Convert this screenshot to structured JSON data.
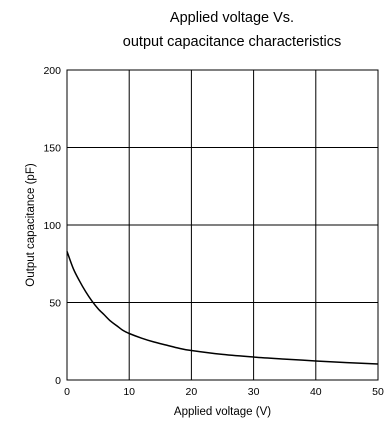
{
  "chart_data": {
    "type": "line",
    "title_lines": [
      "Applied voltage Vs.",
      "output capacitance characteristics"
    ],
    "xlabel": "Applied voltage (V)",
    "ylabel": "Output capacitance (pF)",
    "xlim": [
      0,
      50
    ],
    "ylim": [
      0,
      200
    ],
    "x_ticks": [
      0,
      10,
      20,
      30,
      40,
      50
    ],
    "y_ticks": [
      0,
      50,
      100,
      150,
      200
    ],
    "x_tick_labels": [
      "0",
      "10",
      "20",
      "30",
      "40",
      "50"
    ],
    "y_tick_labels": [
      "0",
      "50",
      "100",
      "150",
      "200"
    ],
    "grid": true,
    "legend": "none",
    "line_color": "#000000",
    "grid_color": "#000000",
    "series": [
      {
        "x": [
          0,
          1,
          2,
          3,
          4,
          5,
          6,
          7,
          8,
          9,
          10,
          12,
          14,
          16,
          18,
          20,
          25,
          30,
          35,
          40,
          45,
          50
        ],
        "y": [
          83,
          72,
          64,
          57,
          51,
          46,
          42,
          38,
          35,
          32,
          30,
          27,
          24.5,
          22.5,
          20.5,
          19,
          16.5,
          14.8,
          13.5,
          12.3,
          11.2,
          10.3
        ]
      }
    ]
  }
}
